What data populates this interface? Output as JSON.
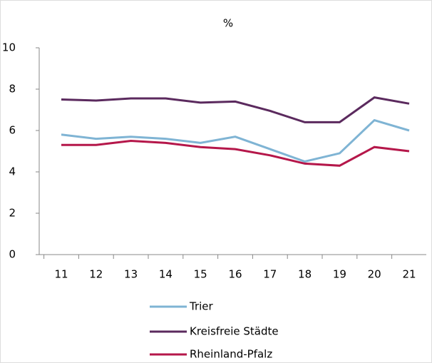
{
  "chart_data": {
    "type": "line",
    "title": "%",
    "categories": [
      "11",
      "12",
      "13",
      "14",
      "15",
      "16",
      "17",
      "18",
      "19",
      "20",
      "21"
    ],
    "series": [
      {
        "name": "Trier",
        "color": "#7fb4d4",
        "values": [
          5.8,
          5.6,
          5.7,
          5.6,
          5.4,
          5.7,
          5.1,
          4.5,
          4.9,
          6.5,
          6.0
        ]
      },
      {
        "name": "Kreisfreie Städte",
        "color": "#5b2a5e",
        "values": [
          7.5,
          7.45,
          7.55,
          7.55,
          7.35,
          7.4,
          6.95,
          6.4,
          6.4,
          7.6,
          7.3
        ]
      },
      {
        "name": "Rheinland-Pfalz",
        "color": "#b5174a",
        "values": [
          5.3,
          5.3,
          5.5,
          5.4,
          5.2,
          5.1,
          4.8,
          4.4,
          4.3,
          5.2,
          5.0
        ]
      }
    ],
    "ylim": [
      0,
      10
    ],
    "yticks": [
      0,
      2,
      4,
      6,
      8,
      10
    ],
    "legend": "bottom"
  }
}
